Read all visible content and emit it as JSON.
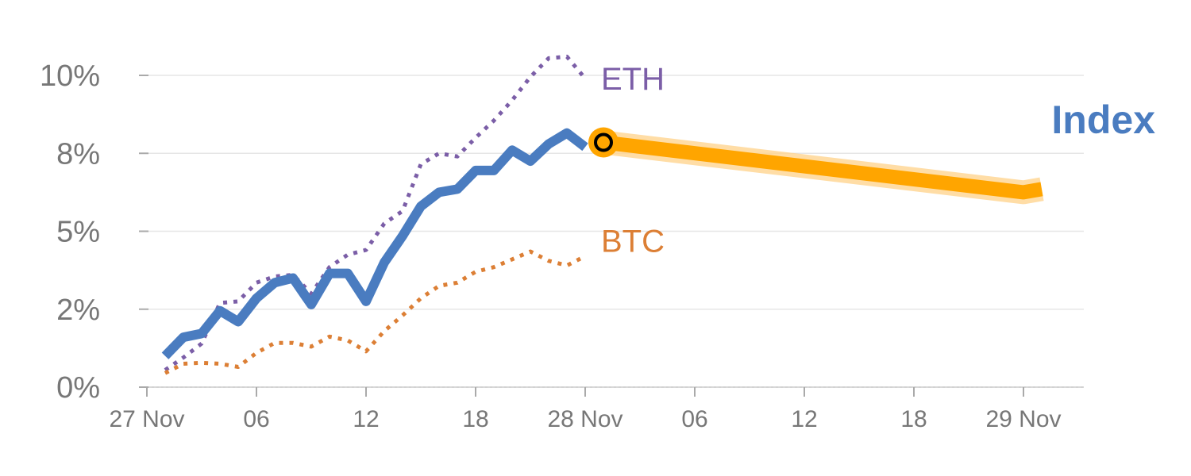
{
  "chart_data": {
    "type": "line",
    "ylim": [
      0,
      10
    ],
    "xlim": [
      "2021-11-27T00:00",
      "2021-11-29T02:00"
    ],
    "yticks": [
      {
        "value": 0,
        "label": "0%"
      },
      {
        "value": 2.5,
        "label": "2%"
      },
      {
        "value": 5,
        "label": "5%"
      },
      {
        "value": 7.5,
        "label": "8%"
      },
      {
        "value": 10,
        "label": "10%"
      }
    ],
    "xticks": [
      {
        "value": "2021-11-27T00:00",
        "label": "27 Nov"
      },
      {
        "value": "2021-11-27T06:00",
        "label": "06"
      },
      {
        "value": "2021-11-27T12:00",
        "label": "12"
      },
      {
        "value": "2021-11-27T18:00",
        "label": "18"
      },
      {
        "value": "2021-11-28T00:00",
        "label": "28 Nov"
      },
      {
        "value": "2021-11-28T06:00",
        "label": "06"
      },
      {
        "value": "2021-11-28T12:00",
        "label": "12"
      },
      {
        "value": "2021-11-28T18:00",
        "label": "18"
      },
      {
        "value": "2021-11-29T00:00",
        "label": "29 Nov"
      }
    ],
    "grid": true,
    "series": [
      {
        "name": "ETH",
        "color": "#7b5ea7",
        "style": "dotted",
        "x": [
          "2021-11-27T01:00",
          "2021-11-27T02:00",
          "2021-11-27T03:00",
          "2021-11-27T04:00",
          "2021-11-27T05:00",
          "2021-11-27T06:00",
          "2021-11-27T07:00",
          "2021-11-27T08:00",
          "2021-11-27T09:00",
          "2021-11-27T10:00",
          "2021-11-27T11:00",
          "2021-11-27T12:00",
          "2021-11-27T13:00",
          "2021-11-27T14:00",
          "2021-11-27T15:00",
          "2021-11-27T16:00",
          "2021-11-27T17:00",
          "2021-11-27T18:00",
          "2021-11-27T19:00",
          "2021-11-27T20:00",
          "2021-11-27T21:00",
          "2021-11-27T22:00",
          "2021-11-27T23:00",
          "2021-11-28T00:00"
        ],
        "values": [
          0.55,
          0.95,
          1.4,
          2.7,
          2.75,
          3.35,
          3.55,
          3.6,
          3.0,
          3.85,
          4.25,
          4.4,
          5.25,
          5.65,
          7.15,
          7.5,
          7.4,
          8.0,
          8.55,
          9.2,
          9.95,
          10.55,
          10.6,
          9.9
        ]
      },
      {
        "name": "BTC",
        "color": "#dc7f35",
        "style": "dotted",
        "x": [
          "2021-11-27T01:00",
          "2021-11-27T02:00",
          "2021-11-27T03:00",
          "2021-11-27T04:00",
          "2021-11-27T05:00",
          "2021-11-27T06:00",
          "2021-11-27T07:00",
          "2021-11-27T08:00",
          "2021-11-27T09:00",
          "2021-11-27T10:00",
          "2021-11-27T11:00",
          "2021-11-27T12:00",
          "2021-11-27T13:00",
          "2021-11-27T14:00",
          "2021-11-27T15:00",
          "2021-11-27T16:00",
          "2021-11-27T17:00",
          "2021-11-27T18:00",
          "2021-11-27T19:00",
          "2021-11-27T20:00",
          "2021-11-27T21:00",
          "2021-11-27T22:00",
          "2021-11-27T23:00",
          "2021-11-28T00:00"
        ],
        "values": [
          0.45,
          0.75,
          0.78,
          0.75,
          0.65,
          1.1,
          1.42,
          1.42,
          1.3,
          1.62,
          1.5,
          1.15,
          1.8,
          2.3,
          2.85,
          3.25,
          3.35,
          3.7,
          3.85,
          4.1,
          4.35,
          4.05,
          3.9,
          4.2
        ]
      },
      {
        "name": "Index",
        "color": "#4a7cc0",
        "style": "solid",
        "x": [
          "2021-11-27T01:00",
          "2021-11-27T02:00",
          "2021-11-27T03:00",
          "2021-11-27T04:00",
          "2021-11-27T05:00",
          "2021-11-27T06:00",
          "2021-11-27T07:00",
          "2021-11-27T08:00",
          "2021-11-27T09:00",
          "2021-11-27T10:00",
          "2021-11-27T11:00",
          "2021-11-27T12:00",
          "2021-11-27T13:00",
          "2021-11-27T14:00",
          "2021-11-27T15:00",
          "2021-11-27T16:00",
          "2021-11-27T17:00",
          "2021-11-27T18:00",
          "2021-11-27T19:00",
          "2021-11-27T20:00",
          "2021-11-27T21:00",
          "2021-11-27T22:00",
          "2021-11-27T23:00",
          "2021-11-28T00:00"
        ],
        "values": [
          1.0,
          1.6,
          1.72,
          2.45,
          2.1,
          2.85,
          3.35,
          3.5,
          2.65,
          3.65,
          3.65,
          2.75,
          4.0,
          4.85,
          5.8,
          6.25,
          6.35,
          6.95,
          6.95,
          7.6,
          7.25,
          7.8,
          8.15,
          7.7
        ]
      },
      {
        "name": "Index",
        "color": "#ffa500",
        "halo_color": "#ffd490",
        "style": "thick",
        "x": [
          "2021-11-28T01:00",
          "2021-11-29T00:00",
          "2021-11-29T01:00"
        ],
        "values": [
          7.85,
          6.25,
          6.35
        ]
      }
    ],
    "series_labels": [
      {
        "text": "ETH",
        "color": "#7b5ea7",
        "x": "2021-11-28T00:00",
        "y": 9.9
      },
      {
        "text": "BTC",
        "color": "#dc7f35",
        "x": "2021-11-28T00:00",
        "y": 4.7
      }
    ],
    "index_label": {
      "text": "Index",
      "color": "#4a7cc0"
    },
    "marker": {
      "x": "2021-11-28T01:00",
      "y": 7.85,
      "fill": "#ffa500",
      "inner": "#000000"
    }
  }
}
